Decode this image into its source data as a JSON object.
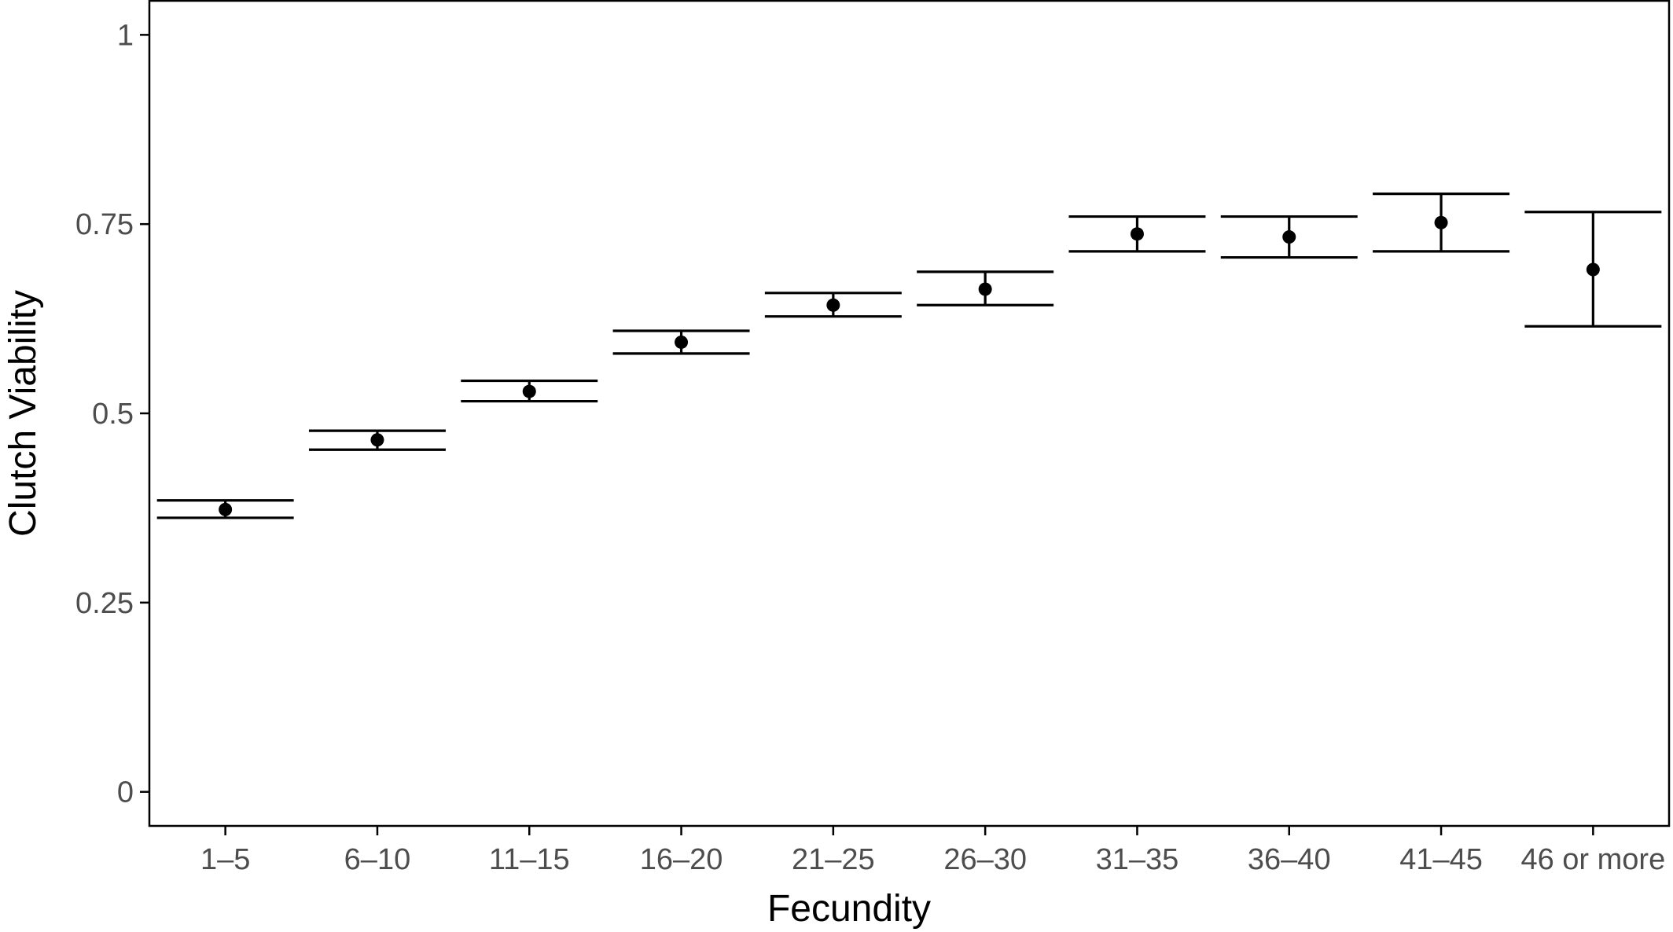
{
  "chart_data": {
    "type": "scatter",
    "title": "",
    "xlabel": "Fecundity",
    "ylabel": "Clutch Viability",
    "categories": [
      "1–5",
      "6–10",
      "11–15",
      "16–20",
      "21–25",
      "26–30",
      "31–35",
      "36–40",
      "41–45",
      "46 or more"
    ],
    "series": [
      {
        "values": [
          0.373,
          0.465,
          0.529,
          0.594,
          0.643,
          0.664,
          0.737,
          0.733,
          0.752,
          0.69
        ],
        "lower": [
          0.362,
          0.452,
          0.516,
          0.579,
          0.628,
          0.643,
          0.714,
          0.706,
          0.714,
          0.615
        ],
        "upper": [
          0.385,
          0.477,
          0.543,
          0.609,
          0.659,
          0.687,
          0.76,
          0.76,
          0.79,
          0.766
        ]
      }
    ],
    "ylim": [
      -0.045,
      1.045
    ],
    "yticks": [
      0,
      0.25,
      0.5,
      0.75,
      1
    ],
    "ytick_labels": [
      "0",
      "0.25",
      "0.5",
      "0.75",
      "1"
    ],
    "grid": false,
    "legend": "none",
    "colors": {
      "marks": "#000000",
      "tick_labels": "#4d4d4d",
      "frame": "#000000"
    }
  }
}
